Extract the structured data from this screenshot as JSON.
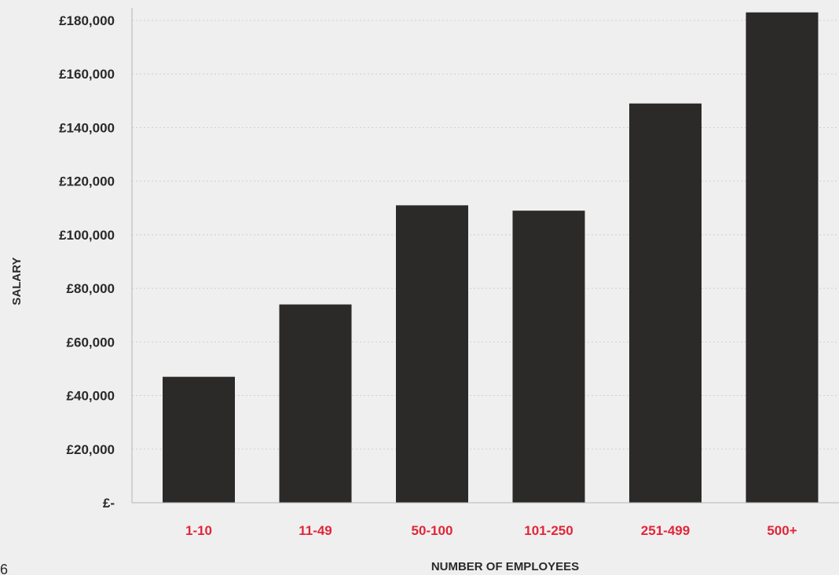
{
  "chart_data": {
    "type": "bar",
    "categories": [
      "1-10",
      "11-49",
      "50-100",
      "101-250",
      "251-499",
      "500+"
    ],
    "values": [
      47000,
      74000,
      111000,
      109000,
      149000,
      183000
    ],
    "title": "",
    "xlabel": "NUMBER OF EMPLOYEES",
    "ylabel": "SALARY",
    "ylim": [
      0,
      180000
    ],
    "yticks": [
      {
        "value": 0,
        "label": "£-"
      },
      {
        "value": 20000,
        "label": "£20,000"
      },
      {
        "value": 40000,
        "label": "£40,000"
      },
      {
        "value": 60000,
        "label": "£60,000"
      },
      {
        "value": 80000,
        "label": "£80,000"
      },
      {
        "value": 100000,
        "label": "£100,000"
      },
      {
        "value": 120000,
        "label": "£120,000"
      },
      {
        "value": 140000,
        "label": "£140,000"
      },
      {
        "value": 160000,
        "label": "£160,000"
      },
      {
        "value": 180000,
        "label": "£180,000"
      }
    ],
    "grid": true,
    "legend": "none",
    "colors": {
      "bar": "#2b2a29",
      "category_label": "#e0263a",
      "text": "#2b2a29",
      "grid": "#cfcfcf",
      "background": "#efefef"
    }
  },
  "page_number": "6"
}
